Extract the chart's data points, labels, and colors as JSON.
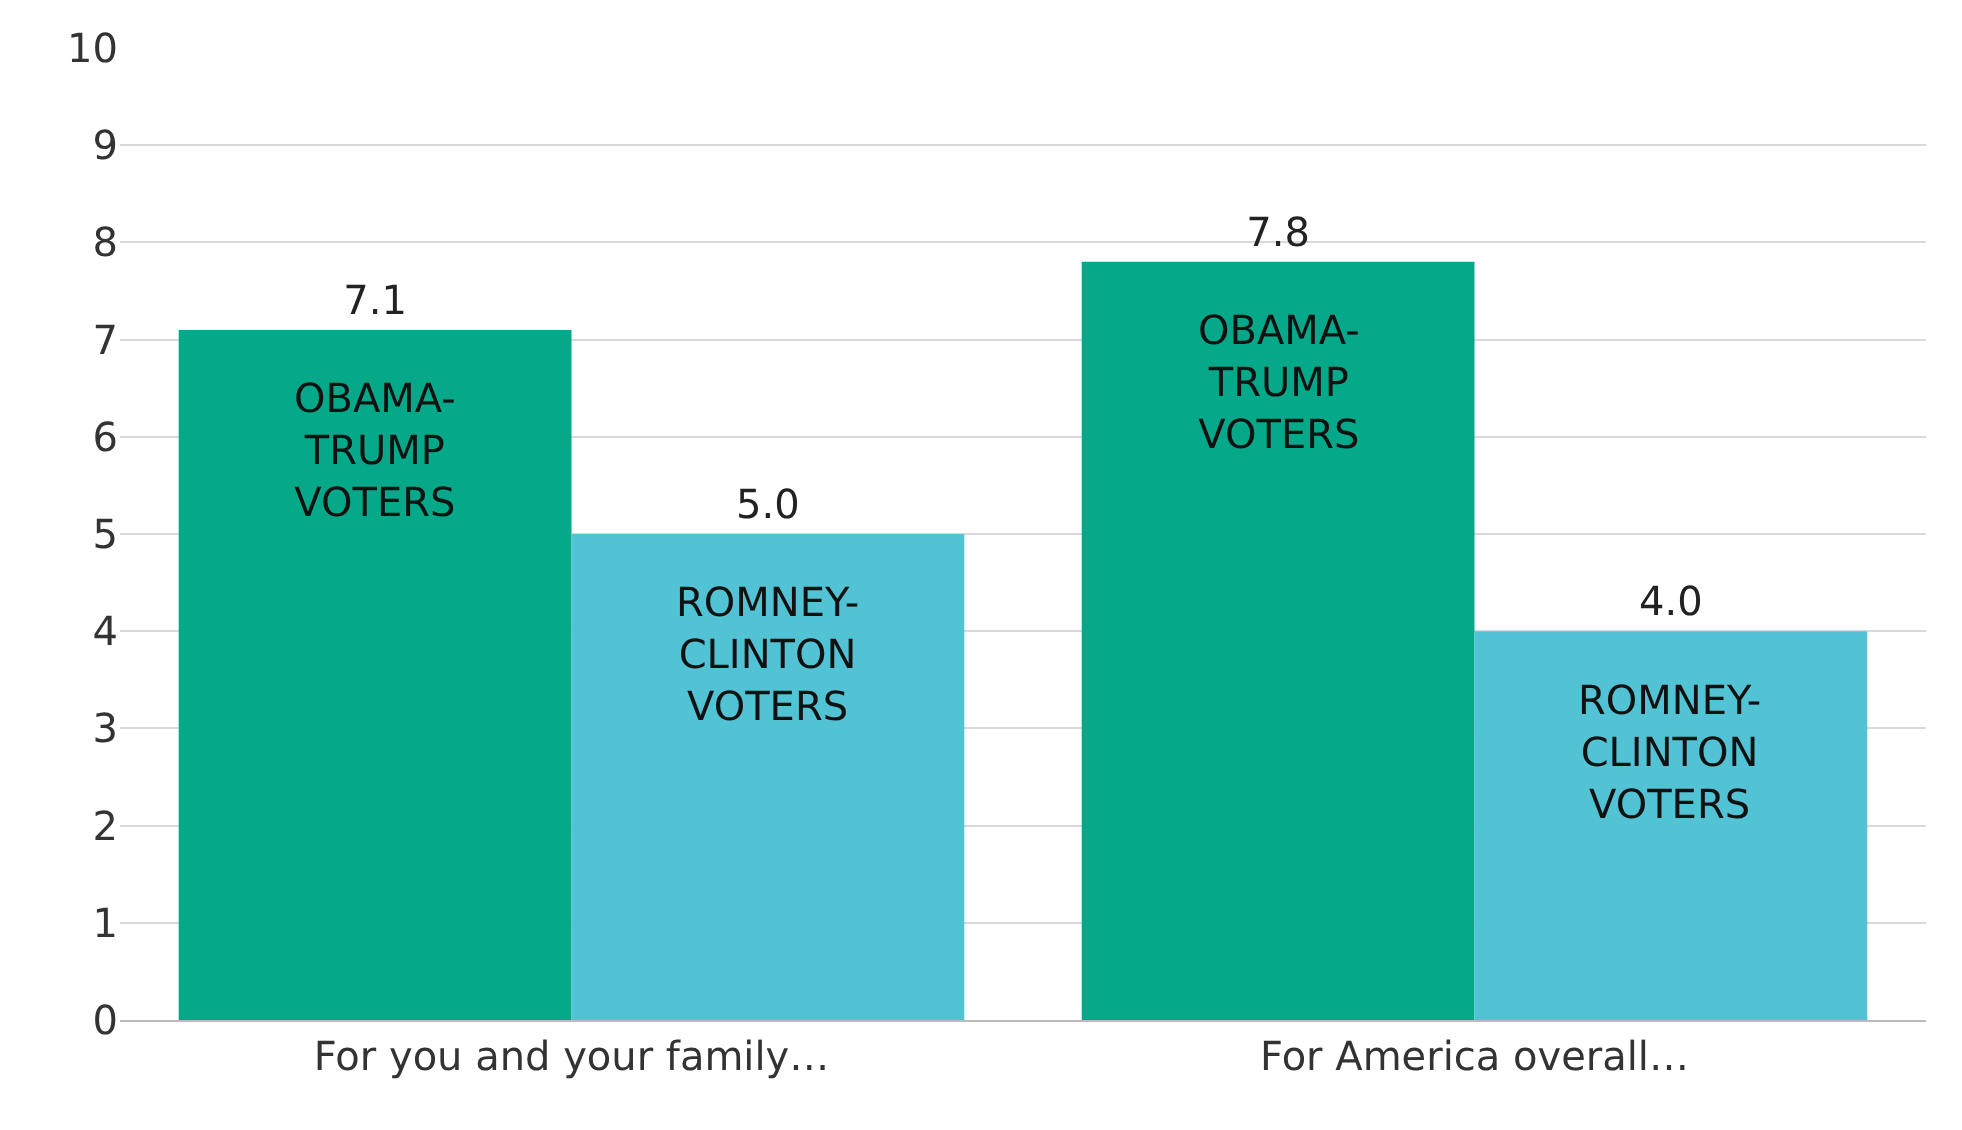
{
  "chart_data": {
    "type": "bar",
    "categories": [
      "For you and your family…",
      "For America overall…"
    ],
    "series": [
      {
        "name": "OBAMA-TRUMP VOTERS",
        "color": "#05a98a",
        "values": [
          7.1,
          7.8
        ],
        "value_labels": [
          "7.1",
          "7.8"
        ]
      },
      {
        "name": "ROMNEY-CLINTON VOTERS",
        "color": "#52c3d4",
        "values": [
          5.0,
          4.0
        ],
        "value_labels": [
          "5.0",
          "4.0"
        ]
      }
    ],
    "ylim": [
      0,
      10
    ],
    "yticks": [
      0,
      1,
      2,
      3,
      4,
      5,
      6,
      7,
      8,
      9,
      10
    ],
    "grid": "y",
    "legend": false
  }
}
